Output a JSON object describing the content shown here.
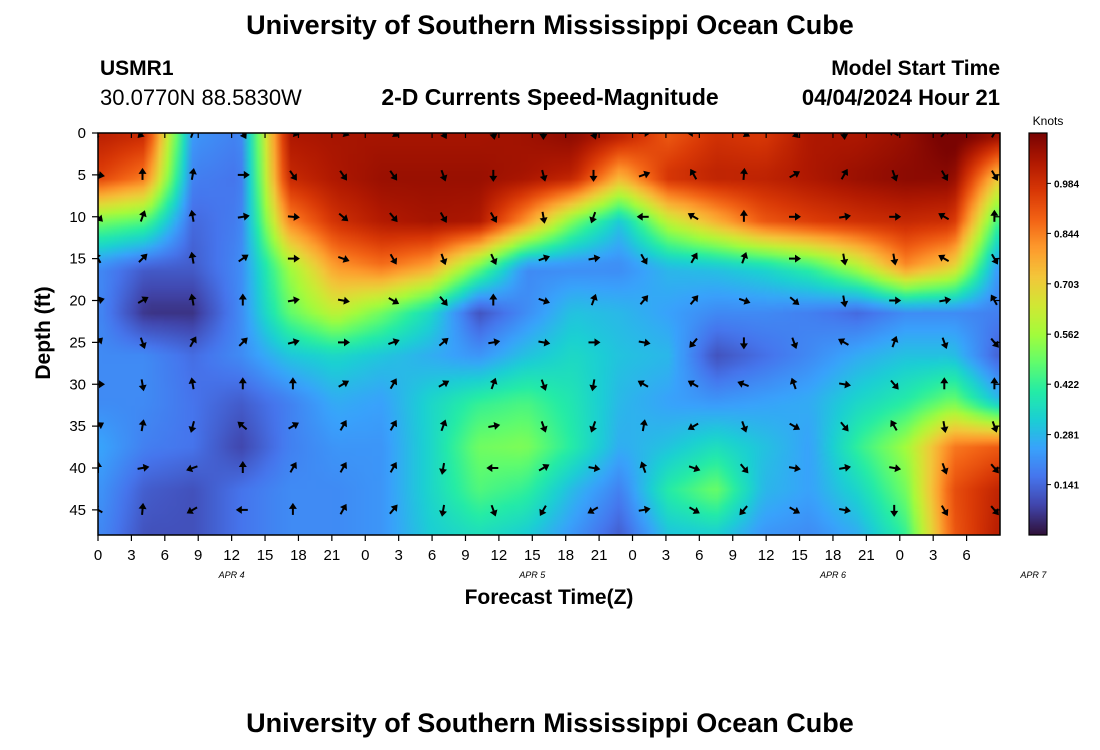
{
  "header": {
    "title": "University of Southern Mississippi Ocean Cube",
    "station_id": "USMR1",
    "station_coords": "30.0770N  88.5830W",
    "plot_title": "2-D Currents Speed-Magnitude",
    "model_start_label": "Model Start Time",
    "model_start_value": "04/04/2024 Hour 21"
  },
  "footer": {
    "title": "University of Southern Mississippi Ocean Cube"
  },
  "colors": {
    "colormap": [
      "#30123b",
      "#4145ab",
      "#4675ed",
      "#39a2fc",
      "#1bcfd4",
      "#24eca6",
      "#61fc6c",
      "#a4fc3b",
      "#d1e834",
      "#f3c63a",
      "#fe9b2d",
      "#f36315",
      "#d93806",
      "#b11901",
      "#7a0402"
    ]
  },
  "chart_data": {
    "type": "heatmap",
    "title": "2-D Currents Speed-Magnitude",
    "xlabel": "Forecast Time(Z)",
    "ylabel": "Depth (ft)",
    "x_tick_labels": [
      "0",
      "3",
      "6",
      "9",
      "12",
      "15",
      "18",
      "21",
      "0",
      "3",
      "6",
      "9",
      "12",
      "15",
      "18",
      "21",
      "0",
      "3",
      "6",
      "9",
      "12",
      "15",
      "18",
      "21",
      "0",
      "3",
      "6"
    ],
    "date_labels": [
      {
        "label": "APR 4",
        "after_tick": 4
      },
      {
        "label": "APR 5",
        "after_tick": 13
      },
      {
        "label": "APR 6",
        "after_tick": 22
      },
      {
        "label": "APR 7",
        "after_tick": 28
      }
    ],
    "x_range_hours": [
      0,
      81
    ],
    "y_ticks": [
      0,
      5,
      10,
      15,
      20,
      25,
      30,
      35,
      40,
      45
    ],
    "ylim": [
      0,
      48
    ],
    "y_inverted": true,
    "colorbar": {
      "label": "Knots",
      "tick_labels": [
        "0.984",
        "0.844",
        "0.703",
        "0.562",
        "0.422",
        "0.281",
        "0.141"
      ],
      "tick_values": [
        0.984,
        0.844,
        0.703,
        0.562,
        0.422,
        0.281,
        0.141
      ],
      "range": [
        0.0,
        1.125
      ]
    },
    "depths": [
      0,
      5,
      10,
      15,
      20,
      25,
      30,
      35,
      40,
      45
    ],
    "speed": [
      [
        1.03,
        1.0,
        0.22,
        0.18,
        1.05,
        1.06,
        1.06,
        1.06,
        1.06,
        1.07,
        1.1,
        1.04,
        0.9,
        0.98,
        0.96,
        1.05,
        1.05,
        1.08,
        1.15,
        1.1
      ],
      [
        0.95,
        0.85,
        0.18,
        0.16,
        1.0,
        1.05,
        1.08,
        1.08,
        1.08,
        1.06,
        1.02,
        0.75,
        0.98,
        1.02,
        1.02,
        1.05,
        1.08,
        1.1,
        1.1,
        0.7
      ],
      [
        0.5,
        0.45,
        0.14,
        0.18,
        0.82,
        0.98,
        1.04,
        1.06,
        1.05,
        0.8,
        0.5,
        0.3,
        0.6,
        0.75,
        0.9,
        0.95,
        0.98,
        1.0,
        0.98,
        0.4
      ],
      [
        0.2,
        0.12,
        0.12,
        0.2,
        0.55,
        0.8,
        0.86,
        0.78,
        0.5,
        0.2,
        0.2,
        0.2,
        0.28,
        0.3,
        0.34,
        0.42,
        0.58,
        0.82,
        0.7,
        0.2
      ],
      [
        0.2,
        0.05,
        0.05,
        0.2,
        0.48,
        0.62,
        0.5,
        0.35,
        0.1,
        0.2,
        0.3,
        0.28,
        0.24,
        0.2,
        0.2,
        0.18,
        0.14,
        0.2,
        0.2,
        0.18
      ],
      [
        0.2,
        0.2,
        0.15,
        0.2,
        0.3,
        0.34,
        0.3,
        0.26,
        0.22,
        0.3,
        0.35,
        0.3,
        0.28,
        0.1,
        0.15,
        0.2,
        0.26,
        0.3,
        0.3,
        0.12
      ],
      [
        0.2,
        0.2,
        0.16,
        0.12,
        0.18,
        0.26,
        0.24,
        0.34,
        0.42,
        0.45,
        0.38,
        0.28,
        0.24,
        0.22,
        0.24,
        0.26,
        0.34,
        0.4,
        0.5,
        0.28
      ],
      [
        0.25,
        0.18,
        0.16,
        0.08,
        0.18,
        0.22,
        0.22,
        0.34,
        0.5,
        0.52,
        0.4,
        0.26,
        0.3,
        0.36,
        0.3,
        0.24,
        0.42,
        0.56,
        0.85,
        0.9
      ],
      [
        0.22,
        0.12,
        0.1,
        0.16,
        0.2,
        0.2,
        0.22,
        0.34,
        0.46,
        0.42,
        0.28,
        0.18,
        0.4,
        0.5,
        0.28,
        0.24,
        0.34,
        0.5,
        0.92,
        1.02
      ],
      [
        0.2,
        0.1,
        0.1,
        0.16,
        0.2,
        0.2,
        0.22,
        0.32,
        0.36,
        0.32,
        0.22,
        0.12,
        0.3,
        0.32,
        0.22,
        0.2,
        0.26,
        0.42,
        0.9,
        1.04
      ]
    ],
    "arrow_times": [
      0,
      4,
      8.5,
      13,
      17.5,
      22,
      26.5,
      31,
      35.5,
      40,
      44.5,
      49,
      53.5,
      58,
      62.5,
      67,
      71.5,
      76,
      80.5
    ],
    "arrow_depths": [
      0,
      5,
      10,
      15,
      20,
      25,
      30,
      35,
      40,
      45
    ],
    "direction_deg": [
      [
        235,
        225,
        20,
        150,
        105,
        110,
        120,
        150,
        170,
        180,
        160,
        90,
        270,
        120,
        135,
        175,
        300,
        40,
        30
      ],
      [
        100,
        0,
        10,
        90,
        145,
        145,
        145,
        160,
        180,
        165,
        180,
        70,
        330,
        5,
        60,
        30,
        160,
        150,
        150
      ],
      [
        135,
        20,
        350,
        80,
        95,
        130,
        140,
        150,
        150,
        170,
        200,
        270,
        300,
        0,
        90,
        80,
        90,
        300,
        0
      ],
      [
        330,
        45,
        350,
        55,
        90,
        110,
        150,
        160,
        155,
        70,
        80,
        150,
        30,
        20,
        90,
        170,
        170,
        300,
        150
      ],
      [
        75,
        60,
        350,
        0,
        80,
        100,
        120,
        140,
        0,
        110,
        20,
        40,
        40,
        110,
        130,
        170,
        90,
        80,
        330
      ],
      [
        45,
        160,
        30,
        45,
        75,
        90,
        70,
        50,
        80,
        100,
        90,
        100,
        220,
        180,
        160,
        300,
        20,
        160,
        140
      ],
      [
        90,
        170,
        350,
        0,
        0,
        60,
        30,
        60,
        20,
        160,
        190,
        300,
        300,
        290,
        340,
        100,
        140,
        0,
        0
      ],
      [
        60,
        10,
        195,
        310,
        60,
        30,
        30,
        20,
        80,
        160,
        200,
        10,
        240,
        160,
        120,
        140,
        330,
        170,
        160
      ],
      [
        0,
        80,
        250,
        0,
        30,
        30,
        30,
        190,
        270,
        60,
        100,
        340,
        110,
        140,
        100,
        80,
        100,
        160,
        140
      ],
      [
        300,
        5,
        240,
        270,
        0,
        30,
        40,
        190,
        160,
        210,
        240,
        80,
        120,
        220,
        120,
        100,
        180,
        150,
        140
      ]
    ]
  }
}
